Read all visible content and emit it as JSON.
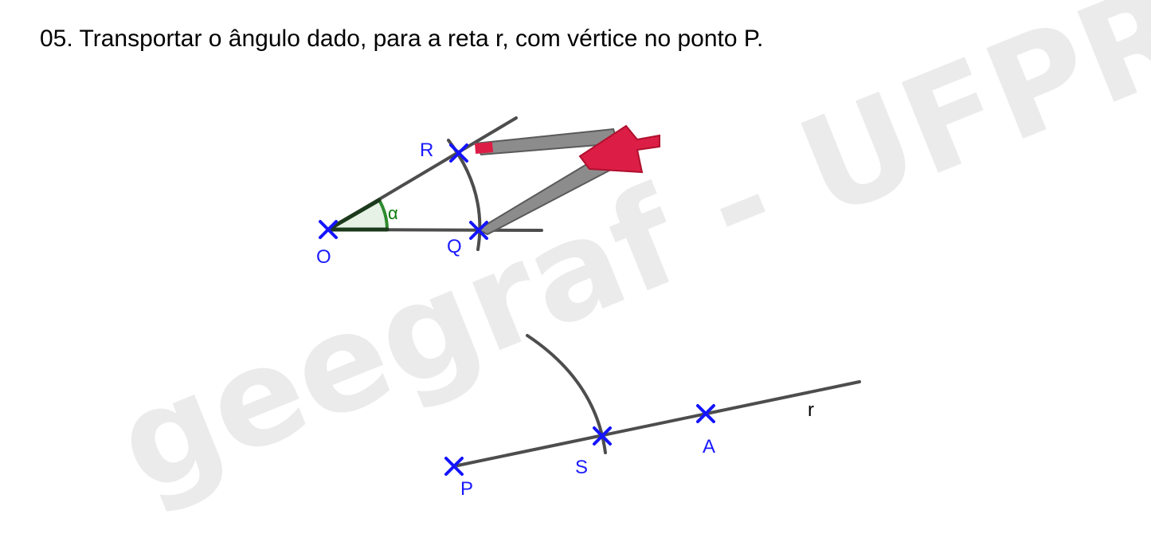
{
  "title": "05.  Transportar o ângulo dado, para a reta r, com vértice no ponto P.",
  "watermark": "geegraf - UFPR",
  "angle": {
    "label": "α",
    "color": "#2e8b2e"
  },
  "points": {
    "O": "O",
    "R": "R",
    "Q": "Q",
    "P": "P",
    "S": "S",
    "A": "A"
  },
  "line_label": "r",
  "colors": {
    "point": "#1414ff",
    "line": "#4d4d4d",
    "compass_body": "#8a8a8a",
    "compass_head": "#dc1e46",
    "watermark": "#ebebeb"
  }
}
